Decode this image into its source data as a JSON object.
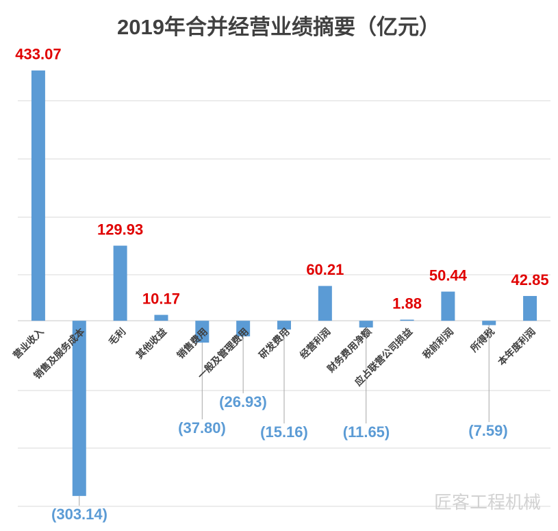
{
  "chart_data": {
    "type": "bar",
    "title": "2019年合并经营业绩摘要（亿元）",
    "categories": [
      "营业收入",
      "销售及服务成本",
      "毛利",
      "其他收益",
      "销售费用",
      "一般及管理费用",
      "研发费用",
      "经营利润",
      "财务费用净额",
      "应占联营公司损益",
      "税前利润",
      "所得税",
      "本年度利润"
    ],
    "values": [
      433.07,
      -303.14,
      129.93,
      10.17,
      -37.8,
      -26.93,
      -15.16,
      60.21,
      -11.65,
      1.88,
      50.44,
      -7.59,
      42.85
    ],
    "value_labels": [
      "433.07",
      "(303.14)",
      "129.93",
      "10.17",
      "(37.80)",
      "(26.93)",
      "(15.16)",
      "60.21",
      "(11.65)",
      "1.88",
      "50.44",
      "(7.59)",
      "42.85"
    ],
    "color": "#5b9bd5",
    "ylim": [
      -346,
      472
    ],
    "watermark": "匠客工程机械"
  }
}
